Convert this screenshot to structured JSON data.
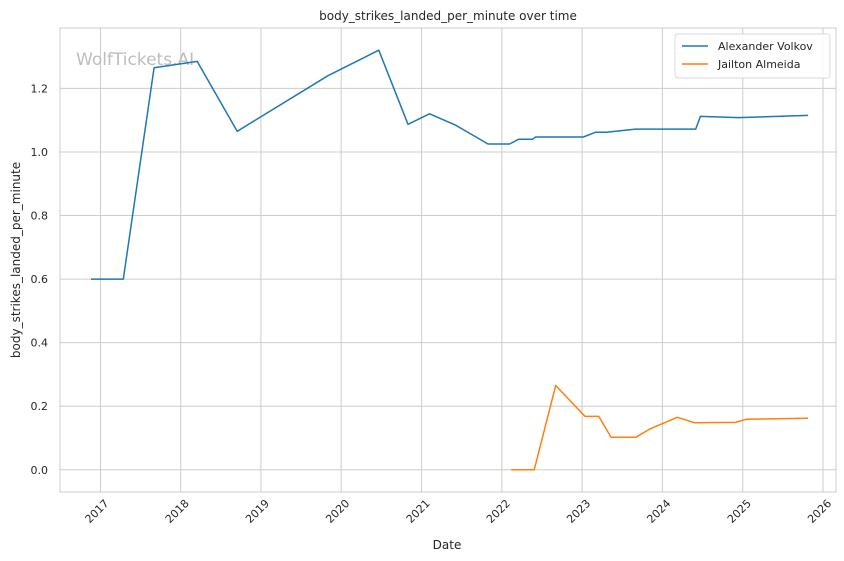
{
  "chart_data": {
    "type": "line",
    "title": "body_strikes_landed_per_minute over time",
    "xlabel": "Date",
    "ylabel": "body_strikes_landed_per_minute",
    "watermark": "WolfTickets.AI",
    "xlim": [
      "2016-07-01",
      "2026-03-01"
    ],
    "ylim": [
      -0.07,
      1.39
    ],
    "x_ticks": [
      "2017",
      "2018",
      "2019",
      "2020",
      "2021",
      "2022",
      "2023",
      "2024",
      "2025",
      "2026"
    ],
    "y_ticks": [
      "0.0",
      "0.2",
      "0.4",
      "0.6",
      "0.8",
      "1.0",
      "1.2"
    ],
    "y_tick_values": [
      0.0,
      0.2,
      0.4,
      0.6,
      0.8,
      1.0,
      1.2
    ],
    "grid": true,
    "legend_position": "top-right",
    "series": [
      {
        "name": "Alexander Volkov",
        "color": "#1f77b4",
        "points": [
          [
            "2016-11-19",
            0.6
          ],
          [
            "2017-04-15",
            0.6
          ],
          [
            "2017-09-02",
            1.265
          ],
          [
            "2018-03-17",
            1.285
          ],
          [
            "2018-09-15",
            1.065
          ],
          [
            "2019-11-02",
            1.24
          ],
          [
            "2020-06-20",
            1.32
          ],
          [
            "2020-10-31",
            1.087
          ],
          [
            "2021-02-06",
            1.12
          ],
          [
            "2021-06-05",
            1.084
          ],
          [
            "2021-10-30",
            1.025
          ],
          [
            "2022-02-05",
            1.025
          ],
          [
            "2022-03-19",
            1.04
          ],
          [
            "2022-05-21",
            1.04
          ],
          [
            "2022-06-04",
            1.047
          ],
          [
            "2023-01-07",
            1.047
          ],
          [
            "2023-03-04",
            1.062
          ],
          [
            "2023-04-22",
            1.062
          ],
          [
            "2023-09-02",
            1.072
          ],
          [
            "2024-06-01",
            1.072
          ],
          [
            "2024-06-22",
            1.112
          ],
          [
            "2024-12-14",
            1.108
          ],
          [
            "2025-10-25",
            1.115
          ]
        ]
      },
      {
        "name": "Jailton Almeida",
        "color": "#ff7f0e",
        "points": [
          [
            "2022-02-12",
            0.0
          ],
          [
            "2022-05-28",
            0.0
          ],
          [
            "2022-09-03",
            0.265
          ],
          [
            "2023-01-14",
            0.168
          ],
          [
            "2023-03-18",
            0.168
          ],
          [
            "2023-05-13",
            0.102
          ],
          [
            "2023-09-02",
            0.102
          ],
          [
            "2023-11-04",
            0.128
          ],
          [
            "2024-03-09",
            0.165
          ],
          [
            "2024-05-25",
            0.148
          ],
          [
            "2024-11-30",
            0.149
          ],
          [
            "2025-01-18",
            0.159
          ],
          [
            "2025-10-25",
            0.162
          ]
        ]
      }
    ]
  }
}
